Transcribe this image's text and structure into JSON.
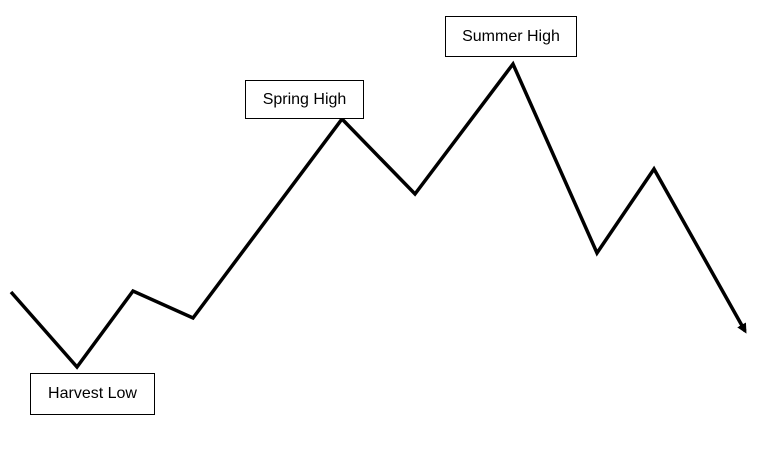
{
  "labels": {
    "spring_high": "Spring High",
    "summer_high": "Summer High",
    "harvest_low": "Harvest Low"
  },
  "colors": {
    "line": "#000000",
    "background": "#ffffff"
  }
}
